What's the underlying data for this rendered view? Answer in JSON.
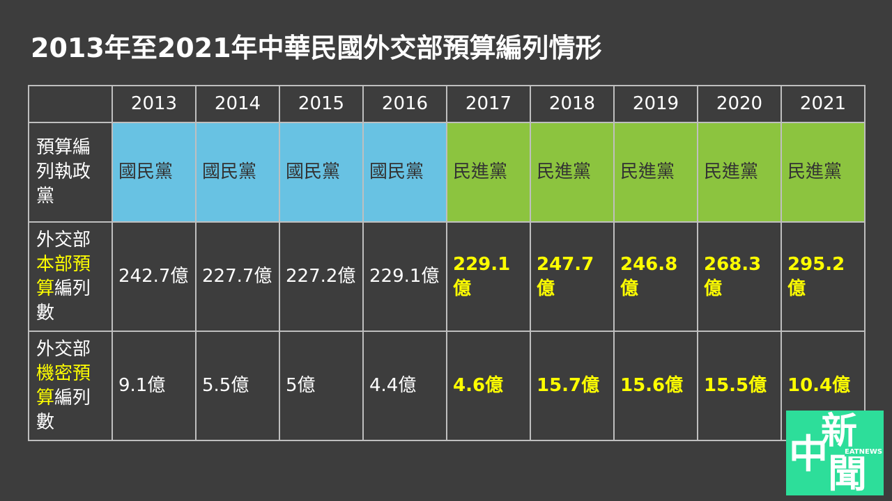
{
  "title": "2013年至2021年中華民國外交部預算編列情形",
  "table": {
    "header": [
      "2013",
      "2014",
      "2015",
      "2016",
      "2017",
      "2018",
      "2019",
      "2020",
      "2021"
    ],
    "highlight": [
      false,
      false,
      false,
      false,
      true,
      true,
      true,
      true,
      true
    ],
    "rows": [
      {
        "label": [
          {
            "text": "預算編列執政黨",
            "yellow": false
          }
        ],
        "cells": [
          {
            "text": "國民黨",
            "color": "#68c2e3"
          },
          {
            "text": "國民黨",
            "color": "#68c2e3"
          },
          {
            "text": "國民黨",
            "color": "#68c2e3"
          },
          {
            "text": "國民黨",
            "color": "#68c2e3"
          },
          {
            "text": "民進黨",
            "color": "#8cc43f"
          },
          {
            "text": "民進黨",
            "color": "#8cc43f"
          },
          {
            "text": "民進黨",
            "color": "#8cc43f"
          },
          {
            "text": "民進黨",
            "color": "#8cc43f"
          },
          {
            "text": "民進黨",
            "color": "#8cc43f"
          }
        ]
      },
      {
        "label": [
          {
            "text": "外交部",
            "yellow": false
          },
          {
            "text": "本部預算",
            "yellow": true
          },
          {
            "text": "編列數",
            "yellow": false
          }
        ],
        "cells": [
          {
            "text": "242.7億"
          },
          {
            "text": "227.7億"
          },
          {
            "text": "227.2億"
          },
          {
            "text": "229.1億"
          },
          {
            "text": "229.1億"
          },
          {
            "text": "247.7億"
          },
          {
            "text": "246.8億"
          },
          {
            "text": "268.3億"
          },
          {
            "text": "295.2億"
          }
        ]
      },
      {
        "label": [
          {
            "text": "外交部",
            "yellow": false
          },
          {
            "text": "機密預算",
            "yellow": true
          },
          {
            "text": "編列數",
            "yellow": false
          }
        ],
        "cells": [
          {
            "text": "9.1億"
          },
          {
            "text": "5.5億"
          },
          {
            "text": "5億"
          },
          {
            "text": "4.4億"
          },
          {
            "text": "4.6億"
          },
          {
            "text": "15.7億"
          },
          {
            "text": "15.6億"
          },
          {
            "text": "15.5億"
          },
          {
            "text": "10.4億"
          }
        ]
      }
    ]
  },
  "logo": {
    "chars": [
      "新",
      "中",
      "聞"
    ],
    "sub": "EATNEWS"
  }
}
